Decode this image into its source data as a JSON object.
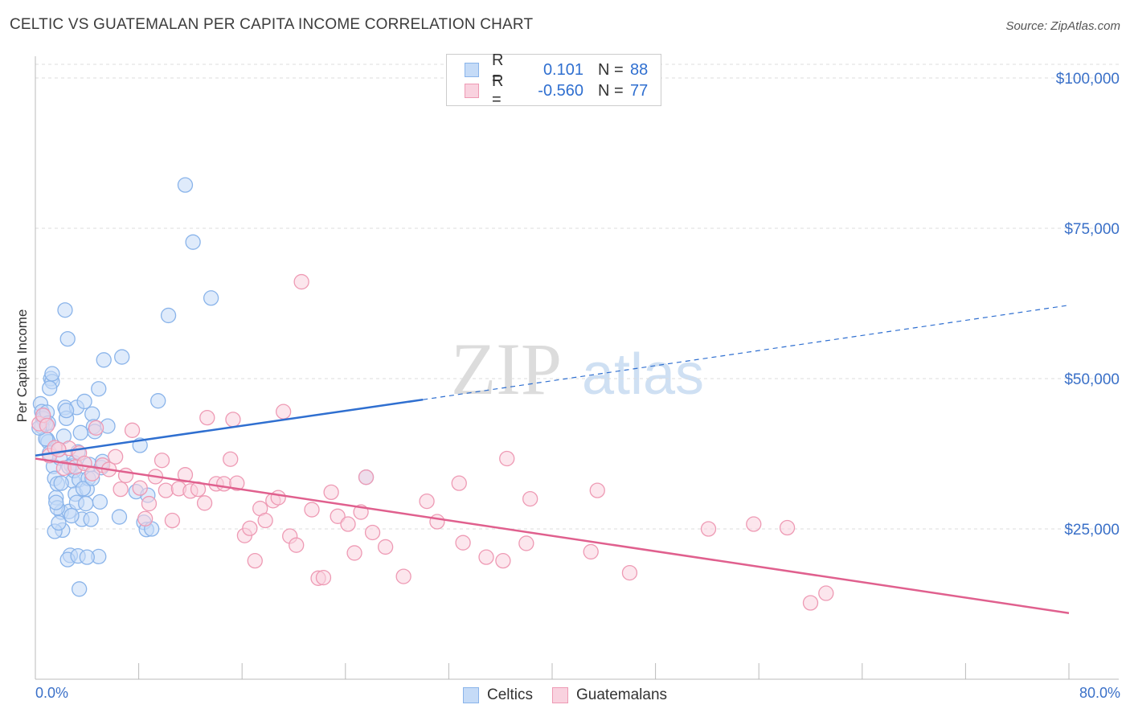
{
  "title": "CELTIC VS GUATEMALAN PER CAPITA INCOME CORRELATION CHART",
  "source": "Source: ZipAtlas.com",
  "watermark": {
    "zip": "ZIP",
    "atlas": "atlas"
  },
  "legend": {
    "r_label": "R =",
    "n_label": "N =",
    "series": [
      {
        "name": "Celtics",
        "r": "0.101",
        "n": "88",
        "color": "#8ab4ea",
        "fill": "#c5dbf7"
      },
      {
        "name": "Guatemalans",
        "r": "-0.560",
        "n": "77",
        "color": "#ee9ab4",
        "fill": "#f9d2df"
      }
    ]
  },
  "colors": {
    "blue_line": "#2f6fd0",
    "pink_line": "#e0608e",
    "label_blue": "#3a70c8",
    "grid": "#dddddd"
  },
  "chart_data": {
    "type": "scatter",
    "title": "CELTIC VS GUATEMALAN PER CAPITA INCOME CORRELATION CHART",
    "xlabel": "",
    "ylabel": "Per Capita Income",
    "xlim": [
      0,
      80
    ],
    "ylim": [
      0,
      105000
    ],
    "x_tick_labels": [
      "0.0%",
      "80.0%"
    ],
    "y_ticks": [
      25000,
      50000,
      75000,
      100000
    ],
    "y_tick_labels": [
      "$25,000",
      "$50,000",
      "$75,000",
      "$100,000"
    ],
    "series": [
      {
        "name": "Celtics",
        "r": 0.101,
        "n": 88,
        "trend": {
          "x0": 0,
          "y0": 37200,
          "x1": 30,
          "y1": 46500,
          "dash_to_x": 80,
          "dash_to_y": 62200
        },
        "points": [
          [
            0.4,
            45800
          ],
          [
            0.5,
            44500
          ],
          [
            0.6,
            43800
          ],
          [
            0.7,
            43200
          ],
          [
            0.8,
            42500
          ],
          [
            0.5,
            42000
          ],
          [
            0.9,
            39900
          ],
          [
            1.0,
            39500
          ],
          [
            1.2,
            50000
          ],
          [
            1.3,
            49500
          ],
          [
            1.1,
            37600
          ],
          [
            1.4,
            35400
          ],
          [
            1.5,
            33400
          ],
          [
            1.6,
            30200
          ],
          [
            1.7,
            32500
          ],
          [
            1.8,
            38200
          ],
          [
            1.9,
            36800
          ],
          [
            2.0,
            27800
          ],
          [
            2.1,
            24800
          ],
          [
            1.5,
            24600
          ],
          [
            1.8,
            26000
          ],
          [
            2.2,
            40400
          ],
          [
            2.3,
            45200
          ],
          [
            2.4,
            43400
          ],
          [
            2.5,
            56600
          ],
          [
            2.3,
            61400
          ],
          [
            2.6,
            27900
          ],
          [
            2.7,
            20600
          ],
          [
            2.5,
            19900
          ],
          [
            2.8,
            35500
          ],
          [
            2.9,
            33000
          ],
          [
            3.0,
            36000
          ],
          [
            3.1,
            30800
          ],
          [
            3.2,
            45200
          ],
          [
            3.0,
            34700
          ],
          [
            3.3,
            37800
          ],
          [
            3.4,
            33200
          ],
          [
            3.5,
            41000
          ],
          [
            3.3,
            20500
          ],
          [
            3.4,
            15000
          ],
          [
            3.6,
            26600
          ],
          [
            3.8,
            46200
          ],
          [
            4.0,
            31600
          ],
          [
            4.1,
            33400
          ],
          [
            4.2,
            35700
          ],
          [
            4.4,
            44100
          ],
          [
            4.5,
            42000
          ],
          [
            4.3,
            26600
          ],
          [
            4.6,
            41200
          ],
          [
            4.9,
            48300
          ],
          [
            5.0,
            29500
          ],
          [
            4.9,
            20400
          ],
          [
            5.1,
            35200
          ],
          [
            5.3,
            53100
          ],
          [
            5.6,
            42100
          ],
          [
            6.5,
            27000
          ],
          [
            6.7,
            53600
          ],
          [
            7.8,
            31200
          ],
          [
            8.1,
            38900
          ],
          [
            8.4,
            26100
          ],
          [
            8.6,
            24900
          ],
          [
            8.7,
            30600
          ],
          [
            9.0,
            25000
          ],
          [
            9.5,
            46300
          ],
          [
            10.3,
            60500
          ],
          [
            11.6,
            82200
          ],
          [
            12.2,
            72700
          ],
          [
            13.6,
            63400
          ],
          [
            25.6,
            33600
          ],
          [
            0.6,
            43400
          ],
          [
            0.8,
            40000
          ],
          [
            1.1,
            48400
          ],
          [
            1.3,
            50800
          ],
          [
            2.0,
            32600
          ],
          [
            1.7,
            28500
          ],
          [
            2.6,
            35300
          ],
          [
            3.7,
            31700
          ],
          [
            4.4,
            33400
          ],
          [
            5.2,
            36200
          ],
          [
            0.9,
            44400
          ],
          [
            1.0,
            42600
          ],
          [
            1.6,
            29400
          ],
          [
            3.2,
            29400
          ],
          [
            4.0,
            20300
          ],
          [
            2.4,
            44700
          ],
          [
            0.3,
            41800
          ],
          [
            2.8,
            27200
          ],
          [
            3.9,
            29200
          ]
        ]
      },
      {
        "name": "Guatemalans",
        "r": -0.56,
        "n": 77,
        "trend": {
          "x0": 0,
          "y0": 36700,
          "x1": 80,
          "y1": 11000
        },
        "points": [
          [
            0.3,
            42500
          ],
          [
            0.6,
            43900
          ],
          [
            0.9,
            42200
          ],
          [
            1.1,
            37200
          ],
          [
            1.5,
            38500
          ],
          [
            2.2,
            35100
          ],
          [
            2.6,
            38400
          ],
          [
            3.1,
            35300
          ],
          [
            3.4,
            37600
          ],
          [
            3.8,
            35900
          ],
          [
            4.4,
            34200
          ],
          [
            4.7,
            41800
          ],
          [
            5.2,
            35600
          ],
          [
            5.7,
            34900
          ],
          [
            6.2,
            37000
          ],
          [
            6.6,
            31600
          ],
          [
            7.0,
            33900
          ],
          [
            7.5,
            41400
          ],
          [
            8.1,
            31800
          ],
          [
            8.5,
            26700
          ],
          [
            8.8,
            29200
          ],
          [
            9.3,
            33700
          ],
          [
            9.8,
            36400
          ],
          [
            10.1,
            31400
          ],
          [
            10.6,
            26400
          ],
          [
            11.1,
            31700
          ],
          [
            11.6,
            34000
          ],
          [
            12.0,
            31300
          ],
          [
            12.6,
            31600
          ],
          [
            13.1,
            29300
          ],
          [
            13.3,
            43500
          ],
          [
            14.0,
            32500
          ],
          [
            14.6,
            32500
          ],
          [
            15.1,
            36600
          ],
          [
            15.6,
            32600
          ],
          [
            15.3,
            43200
          ],
          [
            16.2,
            23900
          ],
          [
            16.6,
            25100
          ],
          [
            17.0,
            19700
          ],
          [
            17.4,
            28400
          ],
          [
            17.8,
            26400
          ],
          [
            18.4,
            29700
          ],
          [
            18.8,
            30200
          ],
          [
            19.2,
            44500
          ],
          [
            19.7,
            23800
          ],
          [
            20.2,
            22300
          ],
          [
            20.6,
            66100
          ],
          [
            21.4,
            28200
          ],
          [
            21.9,
            16800
          ],
          [
            22.3,
            16900
          ],
          [
            22.9,
            31100
          ],
          [
            23.4,
            27100
          ],
          [
            24.2,
            25800
          ],
          [
            24.7,
            21000
          ],
          [
            25.2,
            27800
          ],
          [
            25.6,
            33600
          ],
          [
            26.1,
            24400
          ],
          [
            27.1,
            22000
          ],
          [
            28.5,
            17100
          ],
          [
            30.3,
            29600
          ],
          [
            31.1,
            26200
          ],
          [
            32.8,
            32600
          ],
          [
            33.1,
            22700
          ],
          [
            34.9,
            20300
          ],
          [
            36.2,
            19700
          ],
          [
            36.5,
            36700
          ],
          [
            38.0,
            22600
          ],
          [
            38.3,
            30000
          ],
          [
            43.0,
            21200
          ],
          [
            43.5,
            31400
          ],
          [
            46.0,
            17700
          ],
          [
            52.1,
            25000
          ],
          [
            55.6,
            25800
          ],
          [
            58.2,
            25200
          ],
          [
            60.0,
            12700
          ],
          [
            61.2,
            14300
          ],
          [
            1.8,
            38200
          ]
        ]
      }
    ]
  }
}
